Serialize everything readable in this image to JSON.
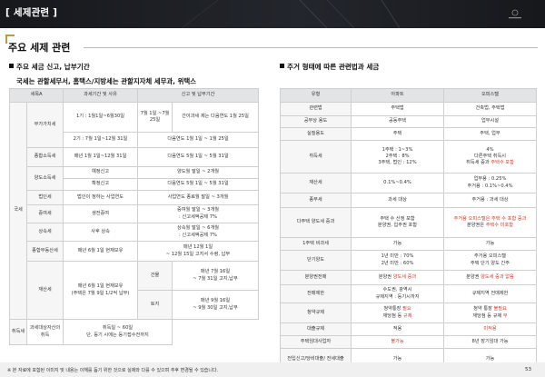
{
  "header": {
    "title": "[ 세제관련 ]"
  },
  "section_title": "주요 세제 관련",
  "left": {
    "heading": "주요 세금 신고, 납부기간",
    "subheading": "국세는 관할세무서, 홈택스/지방세는 관할지자체 세무과, 위택스",
    "columns": [
      "세목A",
      "과세기간 및 사유",
      "신고 및 납부기간"
    ],
    "cat_national": "국세",
    "cat_local": "지방세",
    "vat": {
      "label": "부가가치세",
      "r1_period": "1기 : 1월1일~6월30일",
      "r1_a": "7월 1일 ~7월 25일",
      "r1_b": "간이과세 제는 다음연도 1월 25일",
      "r2_period": "2기 : 7월 1일~12월 31일",
      "r2_due": "다음연도 1월 1일 ~ 1월 25일"
    },
    "income": {
      "label": "종합소득세",
      "period": "매년 1월 1일~12월 31일",
      "due": "다음연도 5월 1일 ~ 5월 31일"
    },
    "transfer": {
      "label": "양도소득세",
      "r1_period": "예정신고",
      "r1_due": "양도월 말일 ~ 2개월",
      "r2_period": "확정신고",
      "r2_due": "다음연도 5월 1일 ~ 5월 31일"
    },
    "corp": {
      "label": "법인세",
      "period": "법인이 정하는 사업연도",
      "due": "사업연도 종료월 말일 ~ 3개월"
    },
    "gift": {
      "label": "증여세",
      "period": "생전증여",
      "due1": "증여월 말일 ~ 3개월",
      "due2": ": 신고세액공제 7%"
    },
    "inherit": {
      "label": "상속세",
      "period": "사후 상속",
      "due1": "상속월 말일 ~ 6개월",
      "due2": ": 신고세액공제 7%"
    },
    "comp": {
      "label": "종합부동산세",
      "period": "매년 6월 1일 현재보유",
      "due1": "매년 12월 1일",
      "due2": "~ 12월 15일 고지서 수령, 납부"
    },
    "property": {
      "label": "재산세",
      "period1": "매년 6월 1일 현재보유",
      "period2": "(주택은 7월 9일 1/2씩 납부)",
      "bld_label": "건물",
      "bld_due1": "매년 7월 16일",
      "bld_due2": "~ 7월 31일 고지,납부",
      "land_label": "토지",
      "land_due1": "매년 9월 16일",
      "land_due2": "~ 9월 30일 고지,납부"
    },
    "acq": {
      "label": "취득세",
      "period": "과세대상자산의 취득",
      "due1": "취득일 ~ 60일",
      "due2": "단, 등기 시에는 등기접수전까지"
    }
  },
  "right": {
    "heading": "주거 형태에 따른 관련법과 세금",
    "columns": [
      "유형",
      "아파트",
      "오피스텔"
    ],
    "rows": [
      {
        "type": "관련법",
        "apt": [
          "주택법"
        ],
        "off": [
          "건축법, 주택법"
        ]
      },
      {
        "type": "공부상 용도",
        "apt": [
          "공동주택"
        ],
        "off": [
          "업무시설"
        ]
      },
      {
        "type": "실질용도",
        "apt": [
          "주택"
        ],
        "off": [
          "주택, 업무"
        ]
      },
      {
        "type": "취득세",
        "apt": [
          "1주택 : 1~3%",
          "2주택 : 8%",
          "3주택, 법인 : 12%"
        ],
        "off": [
          "4%",
          "다른주택 취득시",
          "취득세 중과 |주택수 포함|"
        ]
      },
      {
        "type": "재산세",
        "apt": [
          "0.1%~0.4%"
        ],
        "off": [
          "업무용 : 0.25%",
          "주거용 : 0.1%~0.4%"
        ]
      },
      {
        "type": "종부세",
        "apt": [
          "과세 대상"
        ],
        "off": [
          "주거용 : 과세 대상"
        ]
      },
      {
        "type": "다주택 양도세 중과",
        "apt": [
          "주택 수 산정 포함",
          "분양권, 입주권 포함"
        ],
        "off": [
          "|주거용 오피스텔은 주택 수 포함 중과|",
          "분양권은 |주택수 미포함|"
        ]
      },
      {
        "type": "1주택 비과세",
        "apt": [
          "가능"
        ],
        "off": [
          "가능"
        ]
      },
      {
        "type": "단기양도",
        "apt": [
          "1년 미만 : 70%",
          "2년 미만 : 60%"
        ],
        "off": [
          "주거용 오피스텔",
          "주택 단기 양도 간주"
        ]
      },
      {
        "type": "분양권전매",
        "apt": [
          "분양권 |양도세 중과|"
        ],
        "off": [
          "분양권 |양도세 중과 없음|"
        ]
      },
      {
        "type": "전매제한",
        "apt": [
          "수도권, 광역시",
          "규제지역 : 등기시까지"
        ],
        "off": [
          "규제지역 전매제한"
        ]
      },
      {
        "type": "청약규제",
        "apt": [
          "청약통장 |필요|",
          "재당첨 등 |규제|"
        ],
        "off": [
          "청약 통장 |불필요|",
          "재당첨 등 규제 |무|"
        ]
      },
      {
        "type": "대출규제",
        "apt": [
          "적용"
        ],
        "off": [
          "|미적용|"
        ]
      },
      {
        "type": "주택임대사업자",
        "apt": [
          "|불가능|"
        ],
        "off": [
          "8년 장기임대 가능"
        ]
      },
      {
        "type": "전입신고/당비대출/ 전세대출",
        "apt": [
          "가능"
        ],
        "off": [
          "가능"
        ]
      }
    ]
  },
  "footer": {
    "note": "※ 본 자료에 포함된 이미지 및 내용는 이해를 돕기 위한 것으로 실제와 다를 수 있으며 추후 변경될 수 있습니다.",
    "page": "53"
  },
  "colors": {
    "header_bg": "#1b1d22",
    "accent": "#c39a3a",
    "highlight": "#d93a2b"
  }
}
